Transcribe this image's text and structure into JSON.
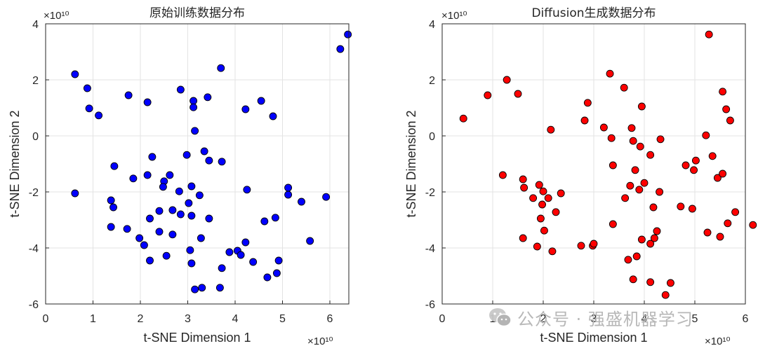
{
  "chart_data": [
    {
      "type": "scatter",
      "title": "原始训练数据分布",
      "xlabel": "t-SNE Dimension 1",
      "ylabel": "t-SNE Dimension 2",
      "x_exponent": "×10¹⁰",
      "y_exponent": "×10¹⁰",
      "xlim": [
        0,
        6.4
      ],
      "ylim": [
        -6,
        4
      ],
      "xticks": [
        "0",
        "1",
        "2",
        "3",
        "4",
        "5",
        "6"
      ],
      "yticks": [
        "-6",
        "-4",
        "-2",
        "0",
        "2",
        "4"
      ],
      "grid": true,
      "marker_color": "#0000ff",
      "series": [
        {
          "points": [
            [
              0.62,
              2.2
            ],
            [
              0.88,
              1.7
            ],
            [
              0.92,
              0.98
            ],
            [
              1.12,
              0.73
            ],
            [
              0.62,
              -2.05
            ],
            [
              1.38,
              -2.3
            ],
            [
              1.45,
              -1.08
            ],
            [
              1.43,
              -2.55
            ],
            [
              1.38,
              -3.25
            ],
            [
              1.75,
              1.45
            ],
            [
              1.85,
              -1.52
            ],
            [
              1.72,
              -3.32
            ],
            [
              1.98,
              -3.65
            ],
            [
              2.08,
              -3.9
            ],
            [
              2.15,
              1.2
            ],
            [
              2.15,
              -1.4
            ],
            [
              2.2,
              -2.95
            ],
            [
              2.2,
              -4.45
            ],
            [
              2.25,
              -0.75
            ],
            [
              2.4,
              -2.68
            ],
            [
              2.4,
              -3.42
            ],
            [
              2.5,
              -1.62
            ],
            [
              2.48,
              -1.82
            ],
            [
              2.55,
              -4.28
            ],
            [
              2.62,
              -1.4
            ],
            [
              2.68,
              -2.65
            ],
            [
              2.68,
              -3.52
            ],
            [
              2.82,
              -1.98
            ],
            [
              2.85,
              1.65
            ],
            [
              2.85,
              -2.8
            ],
            [
              2.98,
              -0.68
            ],
            [
              3.02,
              -2.4
            ],
            [
              3.05,
              -4.08
            ],
            [
              3.08,
              -4.55
            ],
            [
              3.08,
              -1.8
            ],
            [
              3.08,
              -2.85
            ],
            [
              3.12,
              1.25
            ],
            [
              3.12,
              1.02
            ],
            [
              3.15,
              0.18
            ],
            [
              3.15,
              -5.48
            ],
            [
              3.25,
              -2.12
            ],
            [
              3.28,
              -3.65
            ],
            [
              3.3,
              -5.42
            ],
            [
              3.35,
              -0.55
            ],
            [
              3.42,
              1.38
            ],
            [
              3.45,
              -0.88
            ],
            [
              3.45,
              -2.95
            ],
            [
              3.7,
              2.42
            ],
            [
              3.72,
              -0.92
            ],
            [
              3.68,
              -5.42
            ],
            [
              3.72,
              -4.72
            ],
            [
              3.88,
              -4.15
            ],
            [
              4.05,
              -4.1
            ],
            [
              4.12,
              -4.25
            ],
            [
              4.22,
              0.95
            ],
            [
              4.25,
              -1.92
            ],
            [
              4.22,
              -3.8
            ],
            [
              4.38,
              -4.5
            ],
            [
              4.55,
              1.25
            ],
            [
              4.62,
              -3.05
            ],
            [
              4.68,
              -5.05
            ],
            [
              4.8,
              0.7
            ],
            [
              4.85,
              -2.92
            ],
            [
              4.88,
              -4.9
            ],
            [
              4.92,
              -4.45
            ],
            [
              5.12,
              -2.1
            ],
            [
              5.12,
              -1.85
            ],
            [
              5.4,
              -2.35
            ],
            [
              5.58,
              -3.75
            ],
            [
              5.92,
              -2.18
            ],
            [
              6.22,
              3.1
            ],
            [
              6.38,
              3.62
            ]
          ]
        }
      ]
    },
    {
      "type": "scatter",
      "title": "Diffusion生成数据分布",
      "xlabel": "t-SNE Dimension 1",
      "ylabel": "t-SNE Dimension 2",
      "x_exponent": "×10¹⁰",
      "y_exponent": "×10¹⁰",
      "xlim": [
        0,
        6
      ],
      "ylim": [
        -6,
        4
      ],
      "xticks": [
        "0",
        "1",
        "2",
        "3",
        "4",
        "5",
        "6"
      ],
      "yticks": [
        "-6",
        "-4",
        "-2",
        "0",
        "2",
        "4"
      ],
      "grid": true,
      "marker_color": "#ff0000",
      "series": [
        {
          "points": [
            [
              0.42,
              0.62
            ],
            [
              0.9,
              1.45
            ],
            [
              1.2,
              -1.4
            ],
            [
              1.28,
              2.0
            ],
            [
              1.5,
              1.5
            ],
            [
              1.6,
              -1.55
            ],
            [
              1.62,
              -1.85
            ],
            [
              1.6,
              -3.65
            ],
            [
              1.8,
              -2.22
            ],
            [
              1.88,
              -3.95
            ],
            [
              1.92,
              -1.75
            ],
            [
              1.95,
              -2.95
            ],
            [
              1.98,
              -2.45
            ],
            [
              2.0,
              -1.98
            ],
            [
              2.02,
              -3.38
            ],
            [
              2.1,
              -2.22
            ],
            [
              2.15,
              0.22
            ],
            [
              2.18,
              -4.12
            ],
            [
              2.25,
              -2.72
            ],
            [
              2.35,
              -2.05
            ],
            [
              2.75,
              -3.92
            ],
            [
              2.82,
              0.55
            ],
            [
              2.88,
              1.18
            ],
            [
              2.98,
              -3.92
            ],
            [
              3.0,
              -3.85
            ],
            [
              3.2,
              0.3
            ],
            [
              3.32,
              2.22
            ],
            [
              3.35,
              -0.08
            ],
            [
              3.38,
              -1.05
            ],
            [
              3.38,
              -3.15
            ],
            [
              3.6,
              1.72
            ],
            [
              3.62,
              -2.22
            ],
            [
              3.68,
              -4.42
            ],
            [
              3.72,
              -1.78
            ],
            [
              3.75,
              0.28
            ],
            [
              3.78,
              -0.18
            ],
            [
              3.78,
              -5.12
            ],
            [
              3.82,
              -1.22
            ],
            [
              3.85,
              -4.3
            ],
            [
              3.9,
              -1.92
            ],
            [
              3.92,
              -0.38
            ],
            [
              3.95,
              -3.7
            ],
            [
              3.95,
              1.05
            ],
            [
              4.0,
              -1.68
            ],
            [
              4.12,
              -0.68
            ],
            [
              4.12,
              -3.85
            ],
            [
              4.12,
              -5.22
            ],
            [
              4.18,
              -2.55
            ],
            [
              4.2,
              -3.65
            ],
            [
              4.25,
              -3.4
            ],
            [
              4.3,
              -2.0
            ],
            [
              4.32,
              -0.12
            ],
            [
              4.42,
              -5.68
            ],
            [
              4.52,
              -5.25
            ],
            [
              4.72,
              -2.52
            ],
            [
              4.82,
              -1.05
            ],
            [
              4.95,
              -2.6
            ],
            [
              4.98,
              -1.22
            ],
            [
              5.02,
              -0.88
            ],
            [
              5.22,
              0.02
            ],
            [
              5.25,
              -3.45
            ],
            [
              5.28,
              3.62
            ],
            [
              5.35,
              -0.72
            ],
            [
              5.45,
              -1.5
            ],
            [
              5.5,
              -3.6
            ],
            [
              5.55,
              1.58
            ],
            [
              5.55,
              -1.35
            ],
            [
              5.62,
              0.95
            ],
            [
              5.65,
              -3.12
            ],
            [
              5.7,
              0.55
            ],
            [
              5.8,
              -2.72
            ],
            [
              6.15,
              -3.18
            ]
          ]
        }
      ]
    }
  ],
  "watermark": {
    "text": "公众号 · 强盛机器学习",
    "icon": "wechat-icon"
  }
}
